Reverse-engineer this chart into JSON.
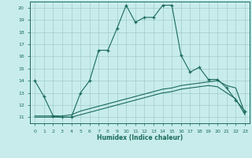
{
  "xlabel": "Humidex (Indice chaleur)",
  "bg_color": "#c8ecec",
  "line_color": "#1a6b5a",
  "grid_color": "#a0cccc",
  "xlim": [
    -0.5,
    23.5
  ],
  "ylim": [
    10.5,
    20.5
  ],
  "yticks": [
    11,
    12,
    13,
    14,
    15,
    16,
    17,
    18,
    19,
    20
  ],
  "xticks": [
    0,
    1,
    2,
    3,
    4,
    5,
    6,
    7,
    8,
    9,
    10,
    11,
    12,
    13,
    14,
    15,
    16,
    17,
    18,
    19,
    20,
    21,
    22,
    23
  ],
  "series1_x": [
    0,
    1,
    2,
    3,
    4,
    5,
    6,
    7,
    8,
    9,
    10,
    11,
    12,
    13,
    14,
    15,
    16,
    17,
    18,
    19,
    20,
    21,
    22,
    23
  ],
  "series1_y": [
    14.0,
    12.7,
    11.1,
    11.0,
    11.0,
    13.0,
    14.0,
    16.5,
    16.5,
    18.3,
    20.2,
    18.8,
    19.2,
    19.2,
    20.2,
    20.2,
    16.1,
    14.7,
    15.1,
    14.1,
    14.1,
    13.4,
    12.4,
    11.5
  ],
  "series2_x": [
    0,
    1,
    2,
    3,
    4,
    5,
    6,
    7,
    8,
    9,
    10,
    11,
    12,
    13,
    14,
    15,
    16,
    17,
    18,
    19,
    20,
    21,
    22,
    23
  ],
  "series2_y": [
    11.1,
    11.1,
    11.1,
    11.1,
    11.2,
    11.5,
    11.7,
    11.9,
    12.1,
    12.3,
    12.5,
    12.7,
    12.9,
    13.1,
    13.3,
    13.4,
    13.6,
    13.7,
    13.8,
    13.9,
    14.0,
    13.6,
    13.4,
    11.3
  ],
  "series3_x": [
    0,
    1,
    2,
    3,
    4,
    5,
    6,
    7,
    8,
    9,
    10,
    11,
    12,
    13,
    14,
    15,
    16,
    17,
    18,
    19,
    20,
    21,
    22,
    23
  ],
  "series3_y": [
    11.0,
    11.0,
    11.0,
    11.0,
    11.0,
    11.2,
    11.4,
    11.6,
    11.8,
    12.0,
    12.2,
    12.4,
    12.6,
    12.8,
    13.0,
    13.1,
    13.3,
    13.4,
    13.5,
    13.6,
    13.5,
    13.0,
    12.5,
    11.2
  ]
}
